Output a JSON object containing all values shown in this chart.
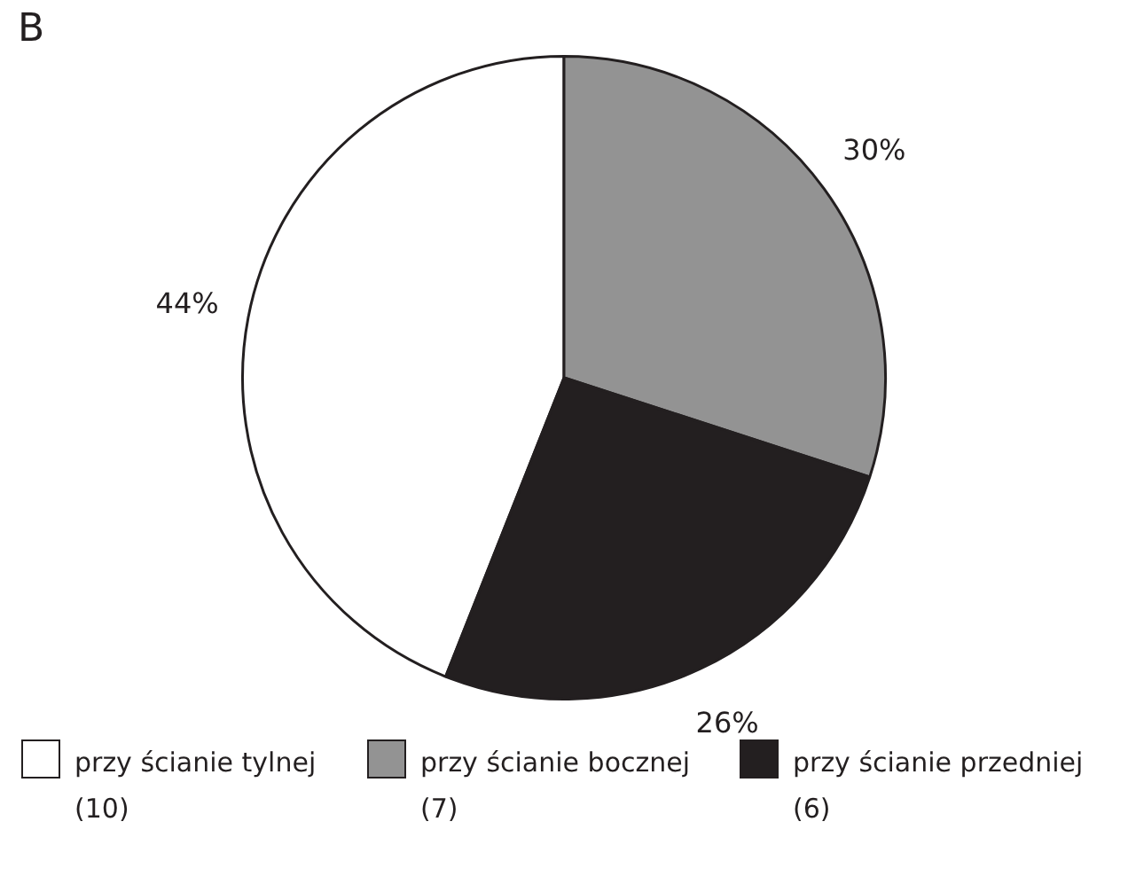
{
  "chart_data": {
    "type": "pie",
    "title": "B",
    "categories": [
      "przy ścianie tylnej (10)",
      "przy ścianie bocznej (7)",
      "przy ścianie przedniej (6)"
    ],
    "values": [
      44,
      30,
      26
    ],
    "colors": [
      "#ffffff",
      "#939393",
      "#231f20"
    ],
    "value_labels": [
      "44%",
      "30%",
      "26%"
    ],
    "legend": "bottom"
  }
}
